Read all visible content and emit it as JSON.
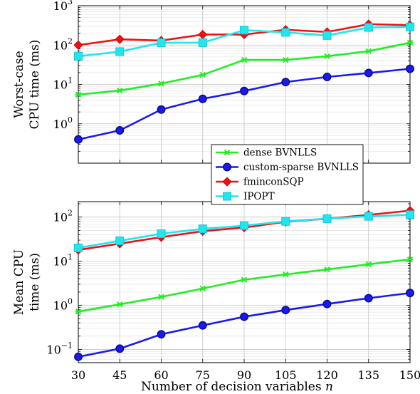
{
  "chart_data": [
    {
      "type": "line",
      "yscale": "log",
      "ylim_exp": [
        -1,
        3
      ],
      "ytick_exps": [
        0,
        1,
        2,
        3
      ],
      "ylabel_lines": [
        "Worst-case",
        "CPU time (ms)"
      ],
      "x": [
        30,
        45,
        60,
        75,
        90,
        105,
        120,
        135,
        150
      ],
      "xlim": [
        30,
        150
      ],
      "grid": true,
      "legend_position": "bottom-right",
      "series": [
        {
          "name": "dense BVNLLS",
          "color": "#22ee22",
          "marker": "star",
          "values": [
            5.5,
            7,
            10.5,
            17.5,
            42,
            42,
            52,
            70,
            115
          ]
        },
        {
          "name": "custom-sparse BVNLLS",
          "color": "#1a1aee",
          "marker": "circle",
          "values": [
            0.4,
            0.68,
            2.3,
            4.3,
            6.8,
            11.5,
            15.5,
            19.5,
            25
          ]
        },
        {
          "name": "fminconSQP",
          "color": "#ee1111",
          "marker": "diamond",
          "values": [
            100,
            140,
            130,
            185,
            185,
            245,
            215,
            340,
            320
          ]
        },
        {
          "name": "IPOPT",
          "color": "#22e5ee",
          "marker": "square",
          "values": [
            52,
            68,
            115,
            115,
            240,
            210,
            175,
            280,
            290
          ]
        }
      ]
    },
    {
      "type": "line",
      "yscale": "log",
      "ylim_exp": [
        -1.3,
        2.35
      ],
      "ytick_exps": [
        -1,
        0,
        1,
        2
      ],
      "ylabel_lines": [
        "Mean CPU",
        "time (ms)"
      ],
      "xlabel_prefix": "Number of decision variables",
      "xlabel_var": "n",
      "x": [
        30,
        45,
        60,
        75,
        90,
        105,
        120,
        135,
        150
      ],
      "xlim": [
        30,
        150
      ],
      "xticks": [
        30,
        45,
        60,
        75,
        90,
        105,
        120,
        135,
        150
      ],
      "grid": true,
      "series": [
        {
          "name": "dense BVNLLS",
          "color": "#22ee22",
          "marker": "star",
          "values": [
            0.72,
            1.05,
            1.55,
            2.4,
            3.8,
            5.0,
            6.5,
            8.5,
            11
          ]
        },
        {
          "name": "custom-sparse BVNLLS",
          "color": "#1a1aee",
          "marker": "circle",
          "values": [
            0.068,
            0.104,
            0.22,
            0.35,
            0.55,
            0.78,
            1.07,
            1.45,
            1.9
          ]
        },
        {
          "name": "fminconSQP",
          "color": "#ee1111",
          "marker": "diamond",
          "values": [
            18,
            25,
            35,
            48,
            58,
            78,
            92,
            112,
            140
          ]
        },
        {
          "name": "IPOPT",
          "color": "#22e5ee",
          "marker": "square",
          "values": [
            20,
            29,
            42,
            54,
            64,
            80,
            92,
            104,
            113
          ]
        }
      ]
    }
  ]
}
